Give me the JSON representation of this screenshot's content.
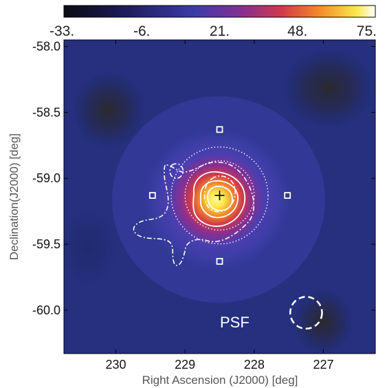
{
  "chart_data": {
    "type": "heatmap",
    "title": "",
    "xlabel": "Right Ascension (J2000) [deg]",
    "ylabel": "Declination(J2000) [deg]",
    "xlim": [
      230.75,
      226.25
    ],
    "ylim": [
      -60.33,
      -57.95
    ],
    "x_ticks": [
      230,
      229,
      228,
      227
    ],
    "x_tick_labels": [
      "230",
      "229",
      "228",
      "227"
    ],
    "y_ticks": [
      -58.0,
      -58.5,
      -59.0,
      -59.5,
      -60.0
    ],
    "y_tick_labels": [
      "-58.0",
      "-58.5",
      "-59.0",
      "-59.5",
      "-60.0"
    ],
    "colorbar": {
      "range": [
        -33,
        75
      ],
      "ticks": [
        -33,
        -6,
        21,
        48,
        75
      ],
      "tick_labels": [
        "-33.",
        "-6.",
        "21.",
        "48.",
        "75."
      ],
      "colormap": [
        "#0b0b12",
        "#1a1a55",
        "#3c3ca8",
        "#8a2f8f",
        "#d03a4a",
        "#f28a2a",
        "#fde84a",
        "#ffffff"
      ]
    },
    "source_peak": {
      "ra": 228.5,
      "dec": -59.13,
      "max_value": 75
    },
    "markers": {
      "cross": {
        "ra": 228.5,
        "dec": -59.13
      },
      "squares": [
        {
          "ra": 228.5,
          "dec": -58.63
        },
        {
          "ra": 229.47,
          "dec": -59.13
        },
        {
          "ra": 227.52,
          "dec": -59.13
        },
        {
          "ra": 228.5,
          "dec": -59.63
        }
      ],
      "dotted_circles": [
        {
          "ra": 228.5,
          "dec": -59.13,
          "radius_deg": 0.5
        },
        {
          "ra": 228.5,
          "dec": -59.13,
          "radius_deg": 0.7
        }
      ],
      "psf_circle": {
        "ra": 227.25,
        "dec": -60.02,
        "radius_deg": 0.23
      }
    },
    "psf_label": "PSF"
  }
}
